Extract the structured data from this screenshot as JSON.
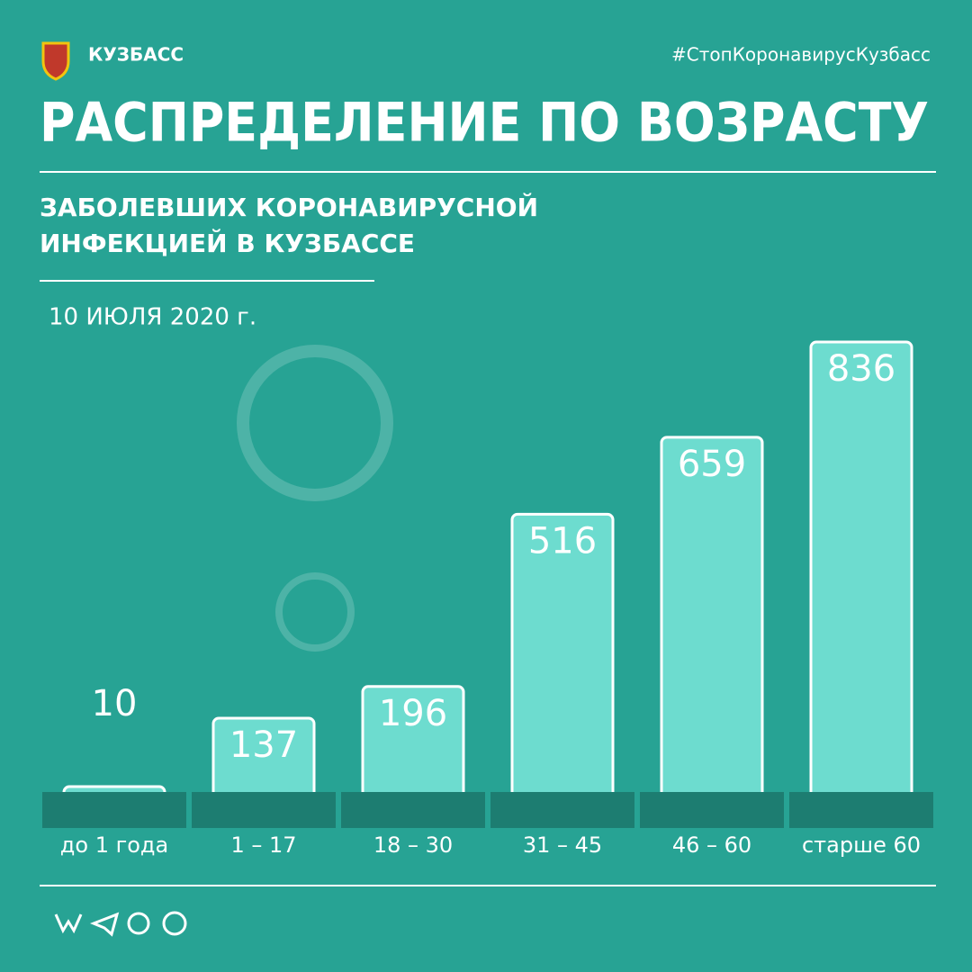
{
  "chart_data": {
    "type": "bar",
    "brand": "КУЗБАСС",
    "hashtag": "#СтопКоронавирусКузбасс",
    "title": "РАСПРЕДЕЛЕНИЕ ПО ВОЗРАСТУ",
    "subtitle": [
      "ЗАБОЛЕВШИХ КОРОНАВИРУСНОЙ",
      "ИНФЕКЦИЕЙ В КУЗБАССЕ"
    ],
    "date": "10 ИЮЛЯ 2020 г.",
    "categories": [
      "до 1 года",
      "1 – 17",
      "18 – 30",
      "31 – 45",
      "46 – 60",
      "старше 60"
    ],
    "values": [
      10,
      137,
      196,
      516,
      659,
      836
    ],
    "color": "#6ddccf"
  }
}
